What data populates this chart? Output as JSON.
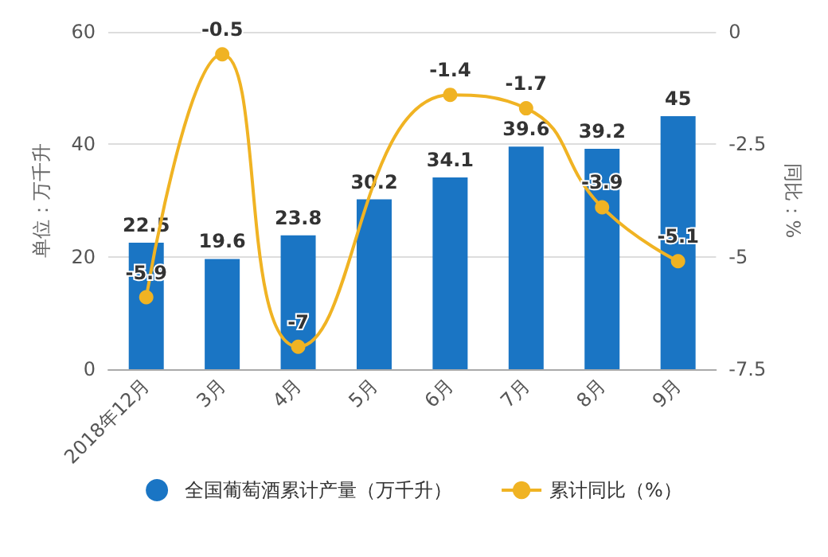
{
  "chart_data": {
    "type": "bar",
    "categories": [
      "2018年12月",
      "3月",
      "4月",
      "5月",
      "6月",
      "7月",
      "8月",
      "9月"
    ],
    "series": [
      {
        "name": "全国葡萄酒累计产量（万千升）",
        "color": "#1a75c4",
        "values": [
          22.5,
          19.6,
          23.8,
          30.2,
          34.1,
          39.6,
          39.2,
          45
        ]
      },
      {
        "name": "累计同比（%）",
        "type": "line",
        "axis": "y2",
        "color": "#f0b323",
        "values": [
          -5.9,
          -0.5,
          -7,
          null,
          -1.4,
          -1.7,
          -3.9,
          -5.1
        ]
      }
    ],
    "ylabel": "单位：万千升",
    "y2label": "同比：%",
    "ylim": [
      0,
      60
    ],
    "yticks": [
      0,
      20,
      40,
      60
    ],
    "y2lim": [
      -7.5,
      0
    ],
    "y2ticks": [
      -7.5,
      -5,
      -2.5,
      0
    ],
    "data_labels": true,
    "grid": "y",
    "legend": "bottom",
    "marker": "circle"
  }
}
